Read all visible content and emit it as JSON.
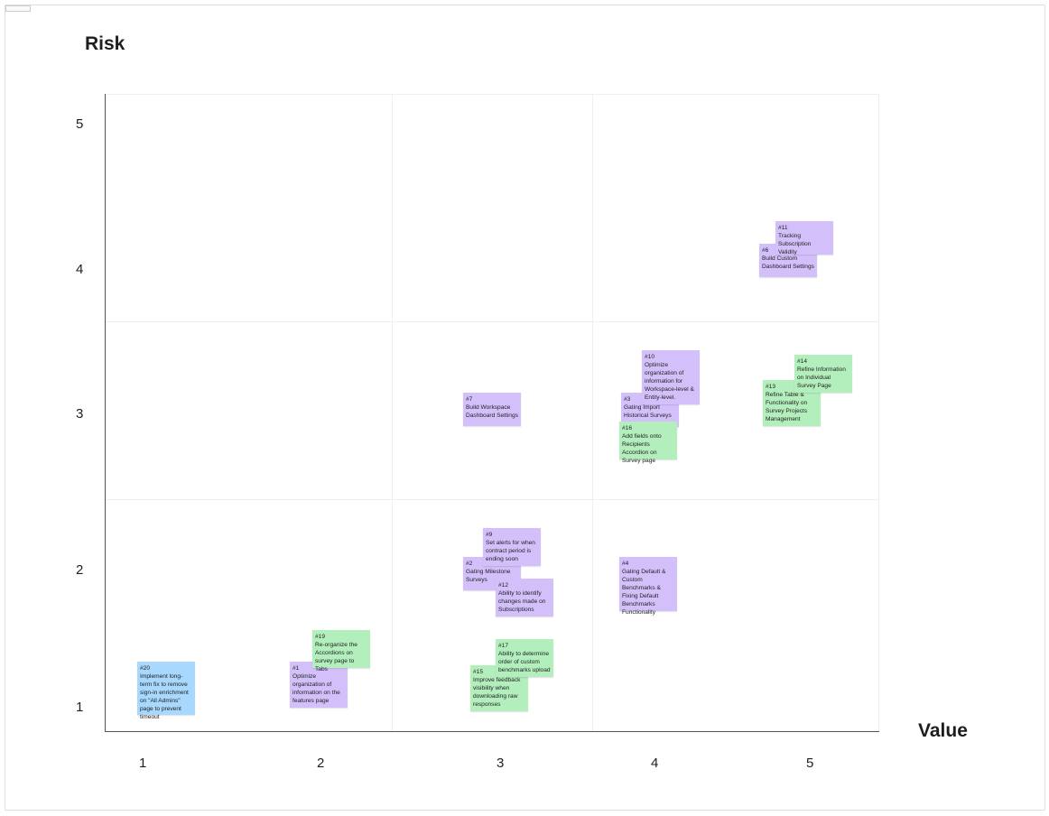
{
  "axes": {
    "y_title": "Risk",
    "x_title": "Value",
    "y_ticks": [
      "5",
      "4",
      "3",
      "2",
      "1"
    ],
    "x_ticks": [
      "1",
      "2",
      "3",
      "4",
      "5"
    ]
  },
  "notes": [
    {
      "id": "#6",
      "text": "Build Custom Dashboard Settings",
      "color": "purple"
    },
    {
      "id": "#11",
      "text": "Tracking Subscription Validity",
      "color": "purple"
    },
    {
      "id": "#3",
      "text": "Gating Import Historical Surveys",
      "color": "purple"
    },
    {
      "id": "#10",
      "text": "Optimize organization of information for Workspace-level & Entity-level.",
      "color": "purple"
    },
    {
      "id": "#16",
      "text": "Add fields onto Recipients Accordion on Survey page",
      "color": "green"
    },
    {
      "id": "#13",
      "text": "Refine Table & Functionality on Survey Projects Management",
      "color": "green"
    },
    {
      "id": "#14",
      "text": "Refine Information on Individual Survey Page",
      "color": "green"
    },
    {
      "id": "#7",
      "text": "Build Workspace Dashboard Settings",
      "color": "purple"
    },
    {
      "id": "#2",
      "text": "Gating Milestone Surveys",
      "color": "purple"
    },
    {
      "id": "#9",
      "text": "Set alerts for when contract period is ending soon",
      "color": "purple"
    },
    {
      "id": "#12",
      "text": "Ability to identify changes made on Subscriptions",
      "color": "purple"
    },
    {
      "id": "#15",
      "text": "Improve feedback visibility when downloading raw responses",
      "color": "green"
    },
    {
      "id": "#17",
      "text": "Ability to determine order of custom benchmarks upload",
      "color": "green"
    },
    {
      "id": "#4",
      "text": "Gating Default & Custom Benchmarks & Fixing Default Benchmarks Functionality",
      "color": "purple"
    },
    {
      "id": "#20",
      "text": "Implement long-term fix to remove sign-in enrichment on \"All Admins\" page to prevent timeout",
      "color": "blue"
    },
    {
      "id": "#1",
      "text": "Optimize organization of information on the features page",
      "color": "purple"
    },
    {
      "id": "#19",
      "text": "Re-organize the Accordions on survey page to Tabs",
      "color": "green"
    }
  ],
  "colors": {
    "purple": "#d3c0fb",
    "green": "#b3efbd",
    "blue": "#a8d8fd"
  }
}
